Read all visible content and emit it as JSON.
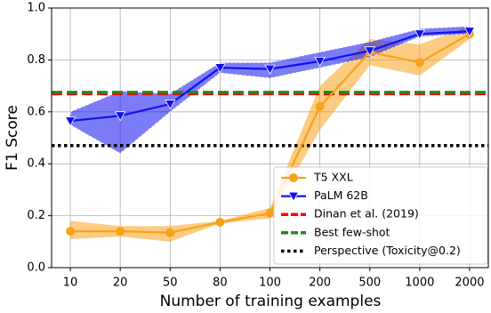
{
  "chart_data": {
    "type": "line",
    "x_label": "Number of training examples",
    "y_label": "F1 Score",
    "categories": [
      "10",
      "20",
      "50",
      "80",
      "100",
      "200",
      "500",
      "1000",
      "2000"
    ],
    "ylim": [
      0,
      1
    ],
    "yticks": [
      {
        "value": 0,
        "label": "0.0"
      },
      0.2,
      0.4,
      0.6,
      0.8,
      {
        "value": 1,
        "label": "1.0"
      }
    ],
    "grid": true,
    "legend": "lower right",
    "series": [
      {
        "name": "T5 XXL",
        "color": "#f7a21b",
        "marker": "circle",
        "values": [
          0.14,
          0.14,
          0.135,
          0.175,
          0.21,
          0.62,
          0.83,
          0.79,
          0.9
        ],
        "band_low": [
          0.11,
          0.12,
          0.1,
          0.17,
          0.19,
          0.53,
          0.78,
          0.74,
          0.88
        ],
        "band_high": [
          0.18,
          0.16,
          0.16,
          0.18,
          0.23,
          0.7,
          0.88,
          0.86,
          0.93
        ]
      },
      {
        "name": "PaLM 62B",
        "color": "#1010f0",
        "marker": "triangle-down",
        "values": [
          0.565,
          0.585,
          0.63,
          0.77,
          0.765,
          0.795,
          0.835,
          0.9,
          0.91
        ],
        "band_low": [
          0.55,
          0.44,
          0.6,
          0.75,
          0.73,
          0.77,
          0.81,
          0.89,
          0.9
        ],
        "band_high": [
          0.6,
          0.68,
          0.67,
          0.79,
          0.79,
          0.83,
          0.87,
          0.92,
          0.93
        ]
      }
    ],
    "hlines": [
      {
        "name": "Dinan et al. (2019)",
        "color": "#ff0000",
        "style": "dashed",
        "value": 0.67
      },
      {
        "name": "Best few-shot",
        "color": "#1f8a1f",
        "style": "dashed",
        "value": 0.675
      },
      {
        "name": "Perspective (Toxicity@0.2)",
        "color": "#000000",
        "style": "dotted",
        "value": 0.47
      }
    ]
  }
}
